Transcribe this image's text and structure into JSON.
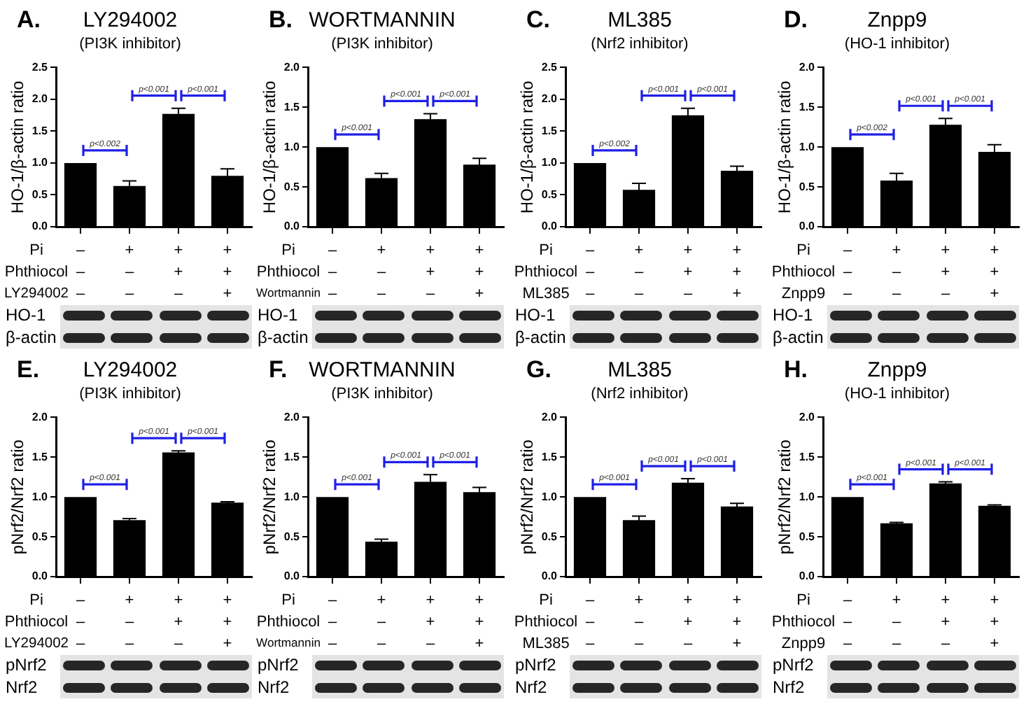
{
  "chart_data": [
    {
      "type": "bar",
      "title": "LY294002",
      "subtitle": "(PI3K inhibitor)",
      "ylabel": "HO-1/β-actin ratio",
      "categories": [
        "–\n–\n–",
        "+\n–\n–",
        "+\n+\n–",
        "+\n+\n+"
      ],
      "values": [
        1,
        0.64,
        1.77,
        0.8
      ],
      "errors": [
        null,
        0.08,
        0.09,
        0.11
      ],
      "color": "#000000",
      "ylim": [
        0,
        2.5
      ],
      "yticks": [
        {
          "value": 0,
          "label": "0.0"
        },
        0.5,
        {
          "value": 1,
          "label": "1.0"
        },
        1.5,
        {
          "value": 2,
          "label": "2.0"
        },
        2.5
      ],
      "annotations": [
        "A.",
        "p<0.002",
        "p<0.001",
        "p<0.001",
        "Pi",
        "Phthiocol",
        "LY294002",
        "HO-1",
        "β-actin"
      ]
    },
    {
      "type": "bar",
      "title": "WORTMANNIN",
      "subtitle": "(PI3K inhibitor)",
      "ylabel": "HO-1/β-actin ratio",
      "categories": [
        "–\n–\n–",
        "+\n–\n–",
        "+\n+\n–",
        "+\n+\n+"
      ],
      "values": [
        1,
        0.61,
        1.35,
        0.78
      ],
      "errors": [
        null,
        0.06,
        0.07,
        0.08
      ],
      "color": "#000000",
      "ylim": [
        0,
        2
      ],
      "yticks": [
        {
          "value": 0,
          "label": "0.0"
        },
        0.5,
        {
          "value": 1,
          "label": "1.0"
        },
        1.5,
        {
          "value": 2,
          "label": "2.0"
        }
      ],
      "annotations": [
        "B.",
        "p<0.001",
        "p<0.001",
        "p<0.001",
        "Pi",
        "Phthiocol",
        "Wortmannin",
        "HO-1",
        "β-actin"
      ]
    },
    {
      "type": "bar",
      "title": "ML385",
      "subtitle": "(Nrf2 inhibitor)",
      "ylabel": "HO-1/β-actin ratio",
      "categories": [
        "–\n–\n–",
        "+\n–\n–",
        "+\n+\n–",
        "+\n+\n+"
      ],
      "values": [
        1,
        0.58,
        1.75,
        0.88
      ],
      "errors": [
        null,
        0.1,
        0.11,
        0.07
      ],
      "color": "#000000",
      "ylim": [
        0,
        2.5
      ],
      "yticks": [
        {
          "value": 0,
          "label": "0.0"
        },
        0.5,
        {
          "value": 1,
          "label": "1.0"
        },
        1.5,
        {
          "value": 2,
          "label": "2.0"
        },
        2.5
      ],
      "annotations": [
        "C.",
        "p<0.002",
        "p<0.001",
        "p<0.001",
        "Pi",
        "Phthiocol",
        "ML385",
        "HO-1",
        "β-actin"
      ]
    },
    {
      "type": "bar",
      "title": "Znpp9",
      "subtitle": "(HO-1 inhibitor)",
      "ylabel": "HO-1/β-actin ratio",
      "categories": [
        "–\n–\n–",
        "+\n–\n–",
        "+\n+\n–",
        "+\n+\n+"
      ],
      "values": [
        1,
        0.58,
        1.28,
        0.94
      ],
      "errors": [
        null,
        0.09,
        0.08,
        0.09
      ],
      "color": "#000000",
      "ylim": [
        0,
        2
      ],
      "yticks": [
        {
          "value": 0,
          "label": "0.0"
        },
        0.5,
        {
          "value": 1,
          "label": "1.0"
        },
        1.5,
        {
          "value": 2,
          "label": "2.0"
        }
      ],
      "annotations": [
        "D.",
        "p<0.002",
        "p<0.001",
        "p<0.001",
        "Pi",
        "Phthiocol",
        "Znpp9",
        "HO-1",
        "β-actin"
      ]
    },
    {
      "type": "bar",
      "title": "LY294002",
      "subtitle": "(PI3K inhibitor)",
      "ylabel": "pNrf2/Nrf2 ratio",
      "categories": [
        "–\n–\n–",
        "+\n–\n–",
        "+\n+\n–",
        "+\n+\n+"
      ],
      "values": [
        1,
        0.71,
        1.56,
        0.93
      ],
      "errors": [
        null,
        0.02,
        0.02,
        0.01
      ],
      "color": "#000000",
      "ylim": [
        0,
        2
      ],
      "yticks": [
        {
          "value": 0,
          "label": "0.0"
        },
        0.5,
        {
          "value": 1,
          "label": "1.0"
        },
        1.5,
        {
          "value": 2,
          "label": "2.0"
        }
      ],
      "annotations": [
        "E.",
        "p<0.001",
        "p<0.001",
        "p<0.001",
        "Pi",
        "Phthiocol",
        "LY294002",
        "pNrf2",
        "Nrf2"
      ]
    },
    {
      "type": "bar",
      "title": "WORTMANNIN",
      "subtitle": "(PI3K inhibitor)",
      "ylabel": "pNrf2/Nrf2 ratio",
      "categories": [
        "–\n–\n–",
        "+\n–\n–",
        "+\n+\n–",
        "+\n+\n+"
      ],
      "values": [
        1,
        0.44,
        1.19,
        1.06
      ],
      "errors": [
        null,
        0.03,
        0.09,
        0.06
      ],
      "color": "#000000",
      "ylim": [
        0,
        2
      ],
      "yticks": [
        {
          "value": 0,
          "label": "0.0"
        },
        0.5,
        {
          "value": 1,
          "label": "1.0"
        },
        1.5,
        {
          "value": 2,
          "label": "2.0"
        }
      ],
      "annotations": [
        "F.",
        "p<0.001",
        "p<0.001",
        "p<0.001",
        "Pi",
        "Phthiocol",
        "Wortmannin",
        "pNrf2",
        "Nrf2"
      ]
    },
    {
      "type": "bar",
      "title": "ML385",
      "subtitle": "(Nrf2 inhibitor)",
      "ylabel": "pNrf2/Nrf2 ratio",
      "categories": [
        "–\n–\n–",
        "+\n–\n–",
        "+\n+\n–",
        "+\n+\n+"
      ],
      "values": [
        1,
        0.71,
        1.18,
        0.88
      ],
      "errors": [
        null,
        0.05,
        0.05,
        0.04
      ],
      "color": "#000000",
      "ylim": [
        0,
        2
      ],
      "yticks": [
        {
          "value": 0,
          "label": "0.0"
        },
        0.5,
        {
          "value": 1,
          "label": "1.0"
        },
        1.5,
        {
          "value": 2,
          "label": "2.0"
        }
      ],
      "annotations": [
        "G.",
        "p<0.001",
        "p<0.001",
        "p<0.001",
        "Pi",
        "Phthiocol",
        "ML385",
        "pNrf2",
        "Nrf2"
      ]
    },
    {
      "type": "bar",
      "title": "Znpp9",
      "subtitle": "(HO-1 inhibitor)",
      "ylabel": "pNrf2/Nrf2 ratio",
      "categories": [
        "–\n–\n–",
        "+\n–\n–",
        "+\n+\n–",
        "+\n+\n+"
      ],
      "values": [
        1,
        0.67,
        1.17,
        0.89
      ],
      "errors": [
        null,
        0.01,
        0.02,
        0.01
      ],
      "color": "#000000",
      "ylim": [
        0,
        2
      ],
      "yticks": [
        {
          "value": 0,
          "label": "0.0"
        },
        0.5,
        {
          "value": 1,
          "label": "1.0"
        },
        1.5,
        {
          "value": 2,
          "label": "2.0"
        }
      ],
      "annotations": [
        "H.",
        "p<0.001",
        "p<0.001",
        "p<0.001",
        "Pi",
        "Phthiocol",
        "Znpp9",
        "pNrf2",
        "Nrf2"
      ]
    }
  ]
}
